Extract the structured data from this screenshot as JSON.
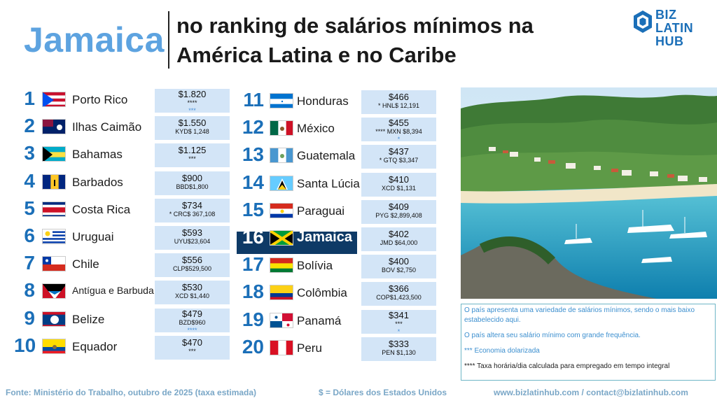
{
  "header": {
    "country": "Jamaica",
    "subtitle_line1": "no ranking de salários mínimos na",
    "subtitle_line2": "América Latina e no Caribe",
    "logo_line1": "BIZ LATIN",
    "logo_line2": "HUB"
  },
  "rankings_left": [
    {
      "rank": "1",
      "name": "Porto Rico",
      "usd": "$1.820",
      "local": "****",
      "note": "***"
    },
    {
      "rank": "2",
      "name": "Ilhas Caimão",
      "usd": "$1.550",
      "local": "KYD$ 1,248",
      "note": ""
    },
    {
      "rank": "3",
      "name": "Bahamas",
      "usd": "$1.125",
      "local": "***",
      "note": ""
    },
    {
      "rank": "4",
      "name": "Barbados",
      "usd": "$900",
      "local": "BBD$1,800",
      "note": ""
    },
    {
      "rank": "5",
      "name": "Costa Rica",
      "usd": "$734",
      "local": "* CRC$ 367,108",
      "note": ""
    },
    {
      "rank": "6",
      "name": "Uruguai",
      "usd": "$593",
      "local": "UYU$23,604",
      "note": ""
    },
    {
      "rank": "7",
      "name": "Chile",
      "usd": "$556",
      "local": "CLP$529,500",
      "note": ""
    },
    {
      "rank": "8",
      "name": "Antígua e Barbuda",
      "usd": "$530",
      "local": "XCD $1,440",
      "note": ""
    },
    {
      "rank": "9",
      "name": "Belize",
      "usd": "$479",
      "local": "BZD$960",
      "note": "****"
    },
    {
      "rank": "10",
      "name": "Equador",
      "usd": "$470",
      "local": "***",
      "note": ""
    }
  ],
  "rankings_right": [
    {
      "rank": "11",
      "name": "Honduras",
      "usd": "$466",
      "local": "* HNL$ 12,191",
      "note": ""
    },
    {
      "rank": "12",
      "name": "México",
      "usd": "$455",
      "local": "**** MXN $8,394",
      "note": "*"
    },
    {
      "rank": "13",
      "name": "Guatemala",
      "usd": "$437",
      "local": "* GTQ $3,347",
      "note": ""
    },
    {
      "rank": "14",
      "name": "Santa Lúcia",
      "usd": "$410",
      "local": "XCD $1,131",
      "note": ""
    },
    {
      "rank": "15",
      "name": "Paraguai",
      "usd": "$409",
      "local": "PYG $2,899,408",
      "note": ""
    },
    {
      "rank": "16",
      "name": "Jamaica",
      "usd": "$402",
      "local": "JMD $64,000",
      "note": ""
    },
    {
      "rank": "17",
      "name": "Bolívia",
      "usd": "$400",
      "local": "BOV $2,750",
      "note": ""
    },
    {
      "rank": "18",
      "name": "Colômbia",
      "usd": "$366",
      "local": "COP$1,423,500",
      "note": ""
    },
    {
      "rank": "19",
      "name": "Panamá",
      "usd": "$341",
      "local": "***",
      "note": "*"
    },
    {
      "rank": "20",
      "name": "Peru",
      "usd": "$333",
      "local": "PEN $1,130",
      "note": ""
    }
  ],
  "notes": {
    "n1": "O país apresenta uma variedade de salários mínimos, sendo o mais baixo estabelecido aqui.",
    "n2": "O país altera seu salário mínimo com grande frequência.",
    "n3": "*** Economia dolarizada",
    "n4": "**** Taxa horária/dia calculada para empregado em tempo integral"
  },
  "footer": {
    "source": "Fonte: Ministério do Trabalho, outubro de 2025 (taxa estimada)",
    "currency": "$ = Dólares dos Estados Unidos",
    "contact": "www.bizlatinhub.com / contact@bizlatinhub.com"
  },
  "colors": {
    "accent": "#5da3e0",
    "brand": "#1b6fb8",
    "highlight": "#0e3a66",
    "wage_bg": "#d3e5f7"
  }
}
